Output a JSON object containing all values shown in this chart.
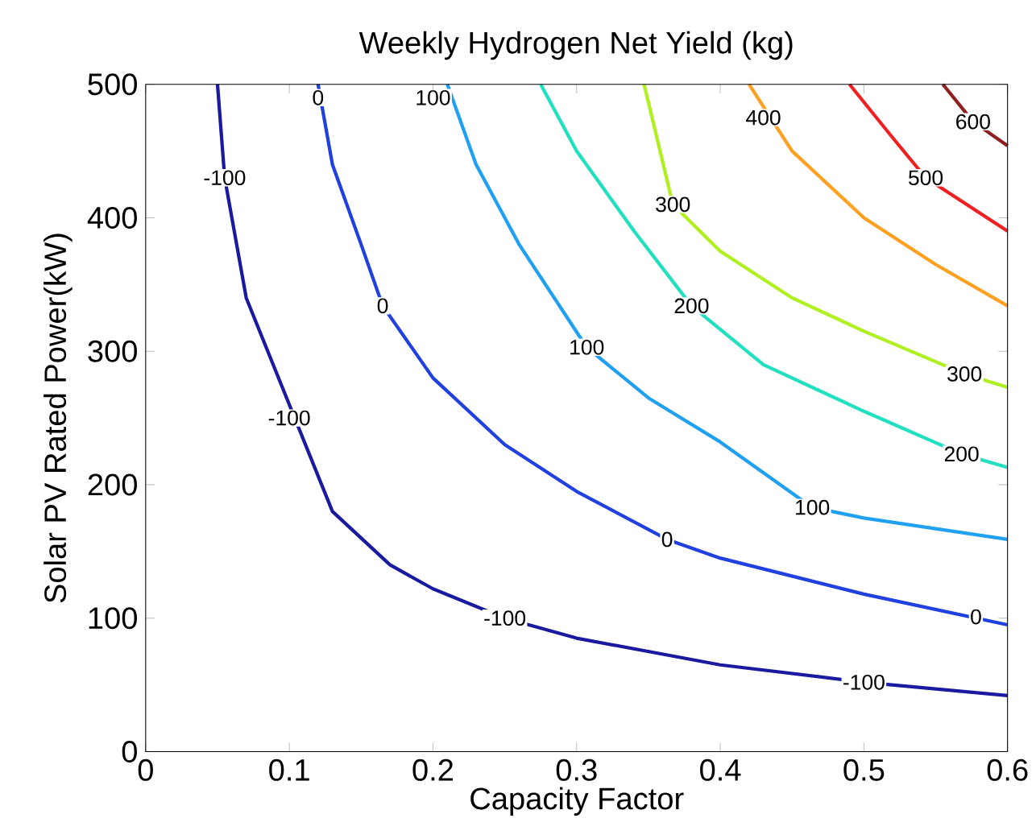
{
  "chart_data": {
    "type": "line",
    "title": "Weekly Hydrogen Net Yield (kg)",
    "xlabel": "Capacity Factor",
    "ylabel": "Solar PV Rated Power(kW)",
    "xlim": [
      0,
      0.6
    ],
    "ylim": [
      0,
      500
    ],
    "xticks": [
      0,
      0.1,
      0.2,
      0.3,
      0.4,
      0.5,
      0.6
    ],
    "yticks": [
      0,
      100,
      200,
      300,
      400,
      500
    ],
    "grid": false,
    "marker": "none",
    "line_style": "solid",
    "series": [
      {
        "color": "#1a1aa0",
        "x": [
          0.05,
          0.055,
          0.07,
          0.13,
          0.17,
          0.2,
          0.25,
          0.3,
          0.4,
          0.5,
          0.6
        ],
        "values": [
          500,
          430,
          340,
          180,
          140,
          122,
          100,
          85,
          65,
          52,
          42
        ]
      },
      {
        "color": "#2040e0",
        "x": [
          0.12,
          0.13,
          0.15,
          0.165,
          0.2,
          0.25,
          0.3,
          0.363,
          0.4,
          0.5,
          0.6
        ],
        "values": [
          500,
          440,
          380,
          334,
          280,
          230,
          195,
          159,
          145,
          118,
          95
        ]
      },
      {
        "color": "#20a0f0",
        "x": [
          0.21,
          0.23,
          0.26,
          0.307,
          0.35,
          0.4,
          0.464,
          0.5,
          0.6
        ],
        "values": [
          500,
          440,
          380,
          303,
          265,
          232,
          183,
          175,
          159
        ]
      },
      {
        "color": "#20e0c0",
        "x": [
          0.275,
          0.3,
          0.34,
          0.38,
          0.43,
          0.5,
          0.568,
          0.6
        ],
        "values": [
          500,
          450,
          390,
          334,
          290,
          255,
          223,
          213
        ]
      },
      {
        "color": "#b0f020",
        "x": [
          0.347,
          0.367,
          0.4,
          0.45,
          0.5,
          0.57,
          0.6
        ],
        "values": [
          500,
          410,
          375,
          340,
          315,
          283,
          273
        ]
      },
      {
        "color": "#ffa020",
        "x": [
          0.42,
          0.45,
          0.5,
          0.55,
          0.6
        ],
        "values": [
          500,
          450,
          400,
          365,
          334
        ]
      },
      {
        "color": "#f02020",
        "x": [
          0.49,
          0.52,
          0.543,
          0.6
        ],
        "values": [
          500,
          460,
          430,
          390
        ]
      },
      {
        "color": "#902020",
        "x": [
          0.555,
          0.576,
          0.6
        ],
        "values": [
          500,
          472,
          454
        ]
      }
    ],
    "annotations": [
      {
        "text": "-100",
        "x": 0.055,
        "y": 430
      },
      {
        "text": "-100",
        "x": 0.1,
        "y": 250
      },
      {
        "text": "-100",
        "x": 0.25,
        "y": 100
      },
      {
        "text": "-100",
        "x": 0.5,
        "y": 52
      },
      {
        "text": "0",
        "x": 0.12,
        "y": 490
      },
      {
        "text": "0",
        "x": 0.165,
        "y": 334
      },
      {
        "text": "0",
        "x": 0.363,
        "y": 159
      },
      {
        "text": "0",
        "x": 0.578,
        "y": 101
      },
      {
        "text": "100",
        "x": 0.2,
        "y": 490
      },
      {
        "text": "100",
        "x": 0.307,
        "y": 303
      },
      {
        "text": "100",
        "x": 0.464,
        "y": 183
      },
      {
        "text": "200",
        "x": 0.38,
        "y": 334
      },
      {
        "text": "200",
        "x": 0.568,
        "y": 223
      },
      {
        "text": "300",
        "x": 0.367,
        "y": 410
      },
      {
        "text": "300",
        "x": 0.57,
        "y": 283
      },
      {
        "text": "400",
        "x": 0.43,
        "y": 475
      },
      {
        "text": "500",
        "x": 0.543,
        "y": 430
      },
      {
        "text": "600",
        "x": 0.576,
        "y": 472
      }
    ]
  }
}
